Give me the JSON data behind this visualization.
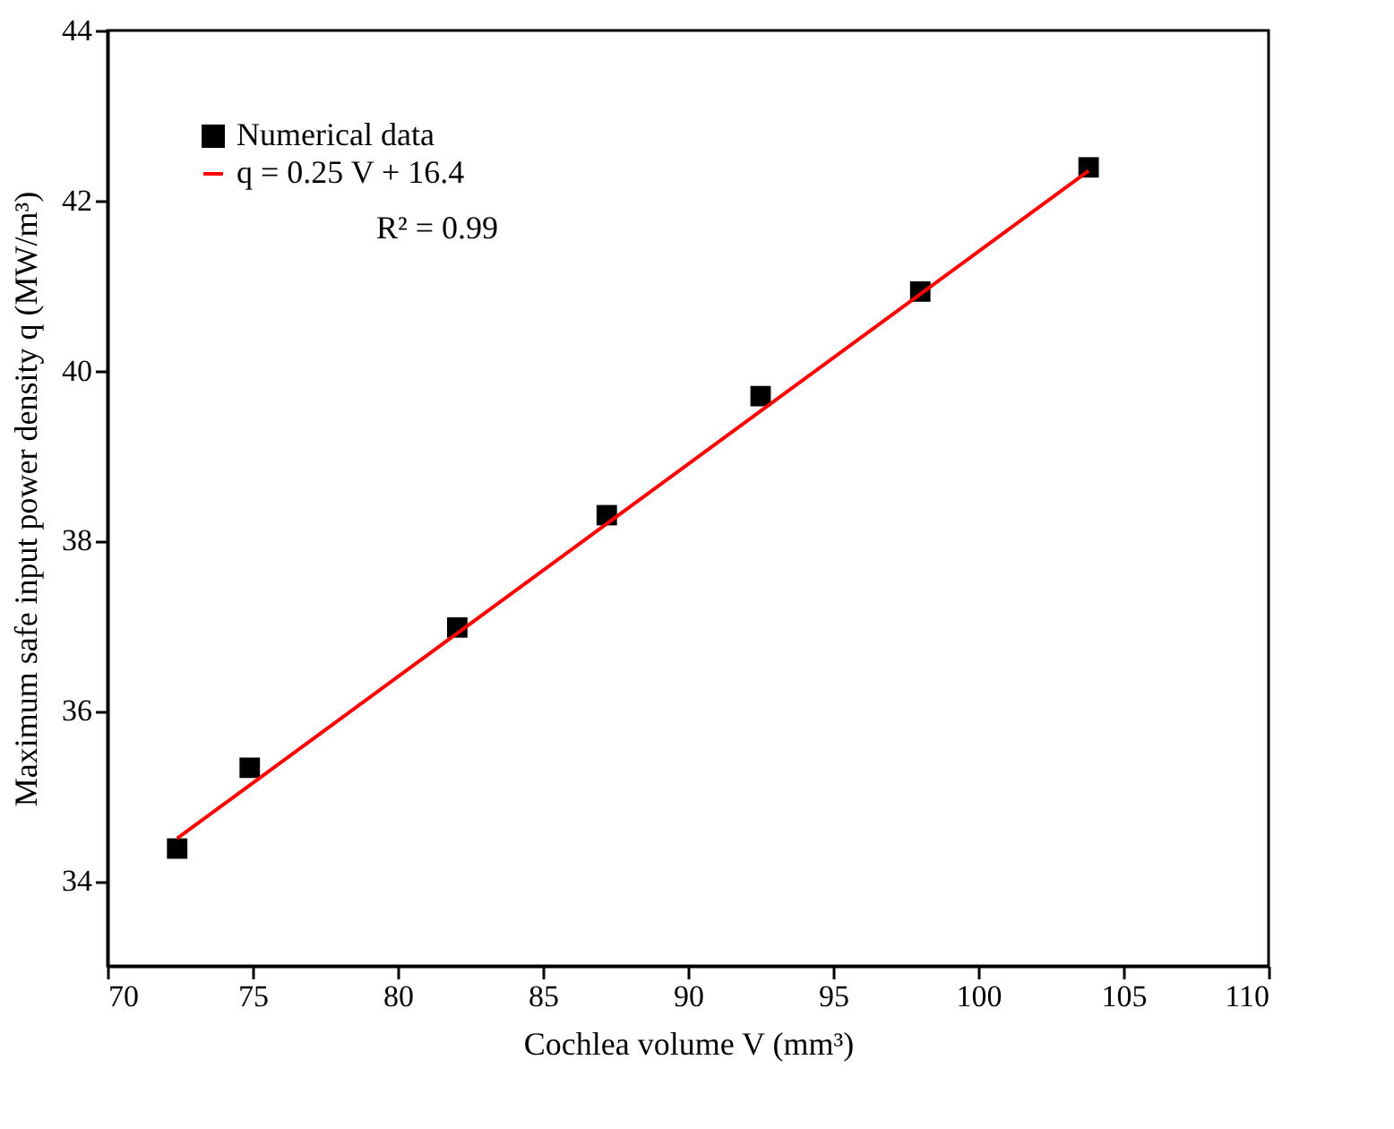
{
  "chart_data": {
    "type": "scatter",
    "xlabel": "Cochlea volume V (mm³)",
    "ylabel": "Maximum safe input power density  q  (MW/m³)",
    "xlim": [
      70,
      110
    ],
    "xticks": [
      70,
      75,
      80,
      85,
      90,
      95,
      100,
      105,
      110
    ],
    "ylim": [
      33,
      44
    ],
    "yticks": [
      34,
      36,
      38,
      40,
      42,
      44
    ],
    "legend": "top left",
    "grid": false,
    "annotations": [
      "R² = 0.99"
    ],
    "series": [
      {
        "name": "Numerical data",
        "marker": "square",
        "color": "#000000",
        "x": [
          72.4,
          74.9,
          82.05,
          87.2,
          92.5,
          98.0,
          103.8
        ],
        "values": [
          34.38,
          35.33,
          36.98,
          38.3,
          39.7,
          40.93,
          42.39
        ]
      },
      {
        "name": "q = 0.25 V + 16.4",
        "type": "line",
        "marker": "none",
        "color": "#ff0000",
        "x": [
          72.4,
          103.8
        ],
        "values": [
          34.5,
          42.35
        ]
      }
    ]
  }
}
